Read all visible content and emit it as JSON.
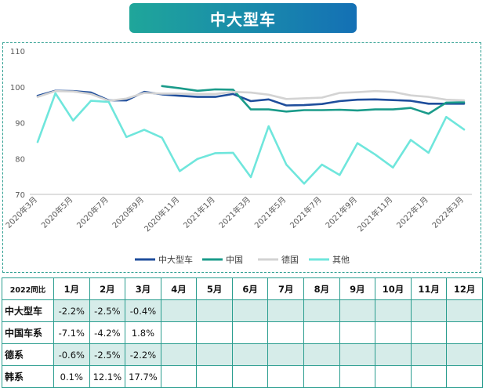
{
  "title": "中大型车",
  "chart_data": {
    "type": "line",
    "x": [
      "2020年3月",
      "2020年4月",
      "2020年5月",
      "2020年6月",
      "2020年7月",
      "2020年8月",
      "2020年9月",
      "2020年10月",
      "2020年11月",
      "2020年12月",
      "2021年1月",
      "2021年2月",
      "2021年3月",
      "2021年4月",
      "2021年5月",
      "2021年6月",
      "2021年7月",
      "2021年8月",
      "2021年9月",
      "2021年10月",
      "2021年11月",
      "2021年12月",
      "2022年1月",
      "2022年2月",
      "2022年3月"
    ],
    "tick_labels": [
      "2020年3月",
      "2020年5月",
      "2020年7月",
      "2020年9月",
      "2020年11月",
      "2021年1月",
      "2021年3月",
      "2021年5月",
      "2021年7月",
      "2021年9月",
      "2021年11月",
      "2022年1月",
      "2022年3月"
    ],
    "ylim": [
      70,
      110
    ],
    "yticks": [
      70,
      80,
      90,
      100,
      110
    ],
    "series": [
      {
        "name": "中大型车",
        "color": "#1f4e9c",
        "values": [
          97.5,
          98.9,
          98.8,
          98.4,
          96.2,
          96.2,
          98.6,
          97.9,
          97.5,
          97.2,
          97.2,
          98.0,
          96.0,
          96.5,
          94.8,
          94.9,
          95.2,
          96.0,
          96.4,
          96.5,
          96.3,
          96.1,
          95.3,
          95.3,
          95.3
        ]
      },
      {
        "name": "中国",
        "color": "#1a9b8a",
        "values": [
          null,
          null,
          null,
          null,
          null,
          null,
          null,
          100.2,
          99.6,
          98.9,
          99.3,
          99.2,
          93.7,
          93.7,
          93.1,
          93.5,
          93.5,
          93.6,
          93.4,
          93.7,
          93.7,
          94.1,
          92.5,
          95.6,
          95.7
        ]
      },
      {
        "name": "德国",
        "color": "#d3d3d3",
        "values": [
          97.2,
          98.8,
          98.7,
          98.0,
          96.1,
          96.7,
          98.3,
          98.1,
          98.1,
          98.0,
          98.0,
          98.6,
          98.4,
          97.8,
          96.6,
          96.8,
          97.0,
          98.3,
          98.5,
          98.8,
          98.6,
          97.6,
          97.2,
          96.4,
          96.2
        ]
      },
      {
        "name": "其他",
        "color": "#6fe6dc",
        "values": [
          84.6,
          98.2,
          90.6,
          96.1,
          95.8,
          86.0,
          88.0,
          85.8,
          76.5,
          79.9,
          81.5,
          81.6,
          74.8,
          89.0,
          78.3,
          73.0,
          78.3,
          75.4,
          84.3,
          81.1,
          77.5,
          85.2,
          81.6,
          91.6,
          88.1
        ]
      }
    ]
  },
  "table": {
    "corner": "2022同比",
    "headers": [
      "1月",
      "2月",
      "3月",
      "4月",
      "5月",
      "6月",
      "7月",
      "8月",
      "9月",
      "10月",
      "11月",
      "12月"
    ],
    "rows": [
      {
        "label": "中大型车",
        "values": [
          "-2.2%",
          "-2.5%",
          "-0.4%",
          "",
          "",
          "",
          "",
          "",
          "",
          "",
          "",
          ""
        ]
      },
      {
        "label": "中国车系",
        "values": [
          "-7.1%",
          "-4.2%",
          "1.8%",
          "",
          "",
          "",
          "",
          "",
          "",
          "",
          "",
          ""
        ]
      },
      {
        "label": "德系",
        "values": [
          "-0.6%",
          "-2.5%",
          "-2.2%",
          "",
          "",
          "",
          "",
          "",
          "",
          "",
          "",
          ""
        ]
      },
      {
        "label": "韩系",
        "values": [
          "0.1%",
          "12.1%",
          "17.7%",
          "",
          "",
          "",
          "",
          "",
          "",
          "",
          "",
          ""
        ]
      }
    ]
  }
}
